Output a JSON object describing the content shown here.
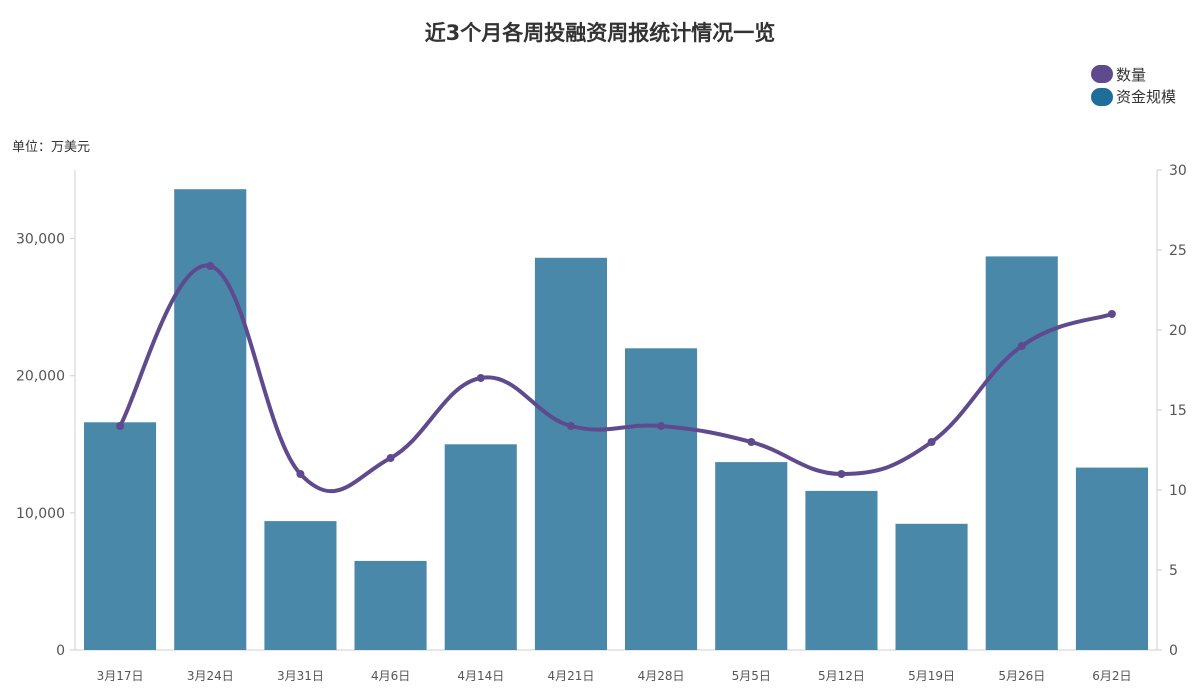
{
  "chart_data": {
    "type": "bar",
    "title": "近3个月各周投融资周报统计情况一览",
    "unit_label": "单位：万美元",
    "categories": [
      "3月17日",
      "3月24日",
      "3月31日",
      "4月6日",
      "4月14日",
      "4月21日",
      "4月28日",
      "5月5日",
      "5月12日",
      "5月19日",
      "5月26日",
      "6月2日"
    ],
    "series": [
      {
        "name": "资金规模",
        "type": "bar",
        "axis": "left",
        "color": "#4a88aa",
        "values": [
          16600,
          33600,
          9400,
          6500,
          15000,
          28600,
          22000,
          13700,
          11600,
          9200,
          28700,
          13300
        ]
      },
      {
        "name": "数量",
        "type": "line",
        "axis": "right",
        "color": "#5f4a8e",
        "smooth": true,
        "values": [
          14,
          24,
          11,
          12,
          17,
          14,
          14,
          13,
          11,
          13,
          19,
          21
        ]
      }
    ],
    "y_left": {
      "ticks": [
        "0",
        "10,000",
        "20,000",
        "30,000"
      ],
      "tick_values": [
        0,
        10000,
        20000,
        30000
      ],
      "ylim": [
        0,
        35000
      ]
    },
    "y_right": {
      "ticks": [
        "0",
        "5",
        "10",
        "15",
        "20",
        "25",
        "30"
      ],
      "tick_values": [
        0,
        5,
        10,
        15,
        20,
        25,
        30
      ],
      "ylim": [
        0,
        30
      ]
    },
    "legend": {
      "position": "top-right",
      "items": [
        {
          "label": "数量",
          "color": "#5f4a8e"
        },
        {
          "label": "资金规模",
          "color": "#1f6e9a"
        }
      ]
    },
    "grid": false
  }
}
